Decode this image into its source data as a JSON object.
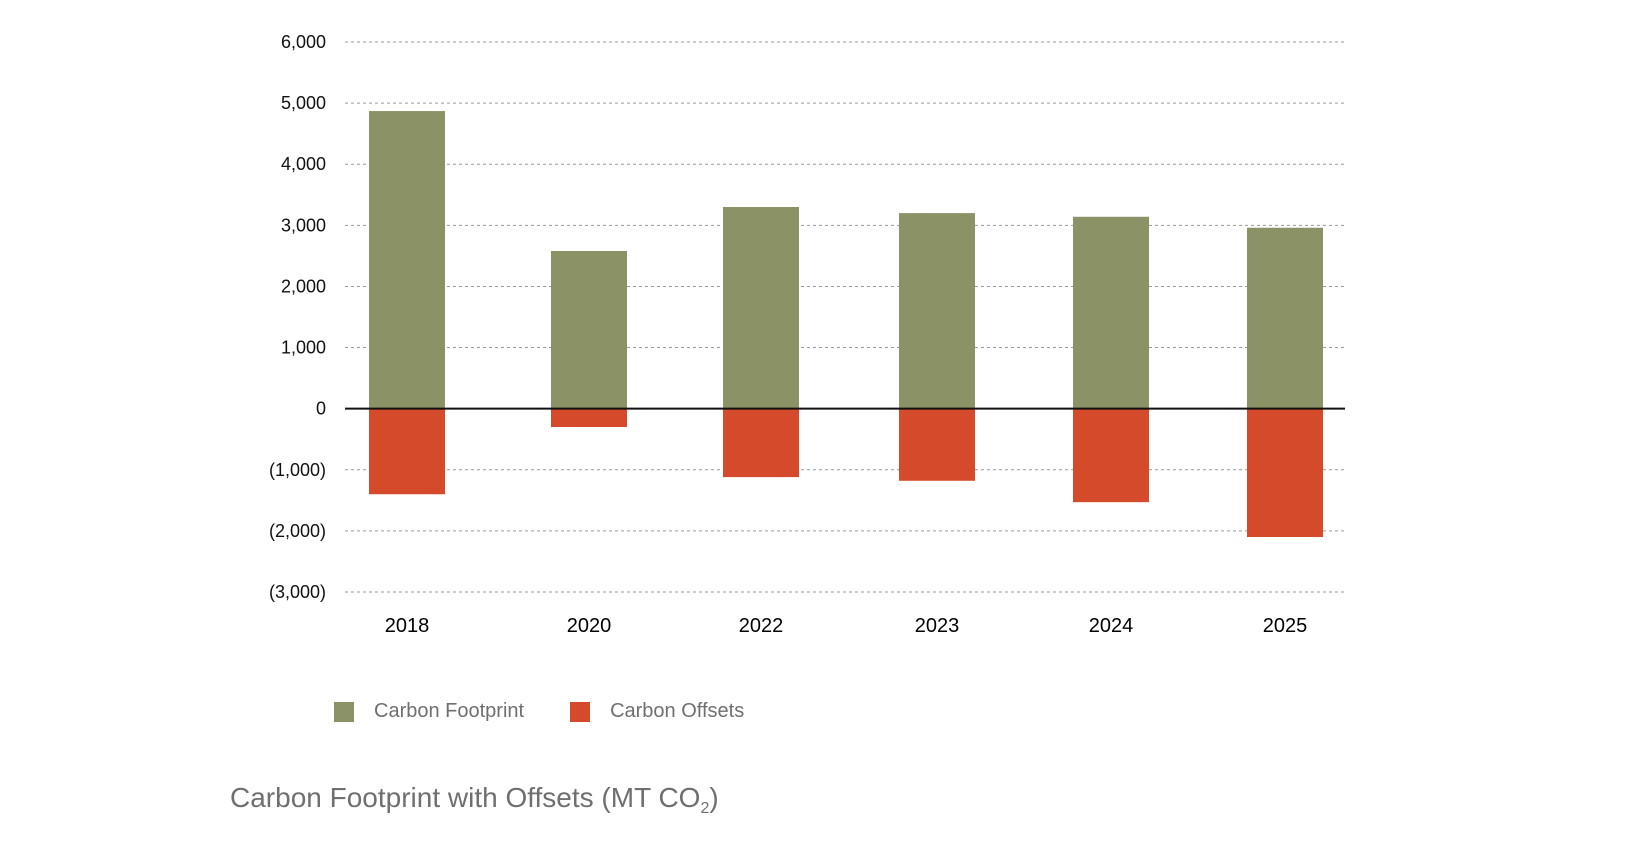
{
  "chart_data": {
    "type": "bar",
    "title_main": "Carbon Footprint with Offsets (MT CO",
    "title_sub": "2",
    "title_end": ")",
    "categories": [
      "2018",
      "2020",
      "2022",
      "2023",
      "2024",
      "2025"
    ],
    "series": [
      {
        "name": "Carbon Footprint",
        "color": "#8a9266",
        "values": [
          4870,
          2580,
          3300,
          3200,
          3140,
          2960
        ]
      },
      {
        "name": "Carbon Offsets",
        "color": "#d44a2a",
        "values": [
          -1400,
          -300,
          -1120,
          -1180,
          -1530,
          -2100
        ]
      }
    ],
    "ylim": [
      -3000,
      6000
    ],
    "yticks": [
      6000,
      5000,
      4000,
      3000,
      2000,
      1000,
      0,
      -1000,
      -2000,
      -3000
    ],
    "ytick_labels": [
      "6,000",
      "5,000",
      "4,000",
      "3,000",
      "2,000",
      "1,000",
      "0",
      "(1,000)",
      "(2,000)",
      "(3,000)"
    ],
    "grid": true,
    "legend_position": "bottom-left"
  }
}
